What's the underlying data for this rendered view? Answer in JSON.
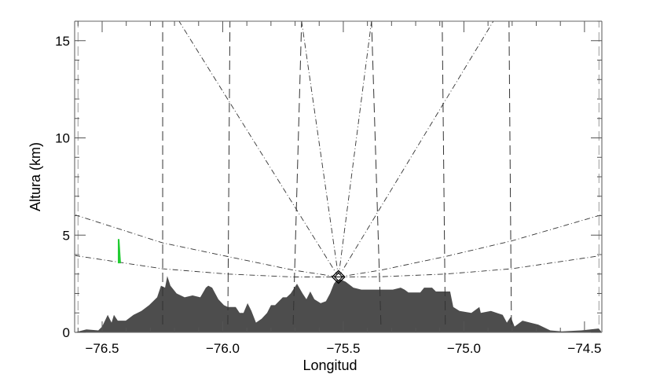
{
  "chart_data": {
    "type": "area",
    "title": "",
    "xlabel": "Longitud",
    "ylabel": "Altura (km)",
    "xlim": [
      -76.614,
      -74.428
    ],
    "ylim": [
      0,
      16
    ],
    "grid": false,
    "x_ticks": [
      -76.5,
      -76.0,
      -75.5,
      -75.0,
      -74.5
    ],
    "x_tick_labels": [
      "−76.5",
      "−76.0",
      "−75.5",
      "−75.0",
      "−74.5"
    ],
    "y_ticks": [
      0,
      5,
      10,
      15
    ],
    "y_tick_labels": [
      "0",
      "5",
      "10",
      "15"
    ],
    "terrain_color": "#4d4d4d",
    "terrain": {
      "lon": [
        -76.614,
        -76.565,
        -76.516,
        -76.5,
        -76.477,
        -76.461,
        -76.451,
        -76.435,
        -76.402,
        -76.37,
        -76.337,
        -76.305,
        -76.272,
        -76.256,
        -76.239,
        -76.23,
        -76.217,
        -76.191,
        -76.158,
        -76.125,
        -76.093,
        -76.07,
        -76.06,
        -76.044,
        -76.018,
        -75.995,
        -75.979,
        -75.946,
        -75.93,
        -75.914,
        -75.897,
        -75.881,
        -75.862,
        -75.839,
        -75.816,
        -75.8,
        -75.783,
        -75.767,
        -75.751,
        -75.735,
        -75.718,
        -75.692,
        -75.669,
        -75.653,
        -75.637,
        -75.62,
        -75.594,
        -75.572,
        -75.555,
        -75.539,
        -75.523,
        -75.507,
        -75.49,
        -75.458,
        -75.425,
        -75.36,
        -75.295,
        -75.262,
        -75.246,
        -75.23,
        -75.181,
        -75.165,
        -75.132,
        -75.116,
        -75.083,
        -75.067,
        -75.057,
        -75.044,
        -75.018,
        -74.969,
        -74.936,
        -74.93,
        -74.888,
        -74.839,
        -74.822,
        -74.806,
        -74.79,
        -74.757,
        -74.725,
        -74.692,
        -74.642,
        -74.594,
        -74.513,
        -74.441,
        -74.428
      ],
      "height_km": [
        0,
        0.15,
        0.1,
        0.3,
        0.9,
        0.5,
        0.9,
        0.6,
        0.6,
        0.9,
        1.1,
        1.4,
        1.8,
        2.4,
        2.3,
        2.9,
        2.4,
        2.0,
        1.8,
        1.9,
        1.8,
        2.3,
        2.4,
        2.3,
        1.7,
        1.4,
        1.3,
        1.3,
        1.0,
        1.0,
        1.5,
        1.1,
        0.5,
        0.7,
        1.0,
        1.4,
        1.4,
        1.6,
        1.8,
        1.8,
        2.0,
        2.5,
        2.0,
        1.7,
        2.1,
        1.7,
        1.5,
        1.6,
        2.0,
        2.5,
        2.75,
        2.7,
        2.6,
        2.3,
        2.2,
        2.2,
        2.2,
        2.3,
        2.2,
        2.05,
        2.05,
        2.3,
        2.3,
        2.1,
        2.1,
        2.1,
        2.1,
        1.3,
        1.1,
        1.0,
        1.3,
        1.0,
        1.1,
        0.9,
        0.5,
        0.8,
        0.3,
        0.6,
        0.5,
        0.4,
        0.1,
        0.05,
        0.1,
        0.2,
        0
      ]
    },
    "radar": {
      "lon": -75.52,
      "height_km": 2.85
    },
    "range_lines": [
      {
        "lon_bottom": -76.6,
        "lon_top": -76.6
      },
      {
        "lon_bottom": -76.249,
        "lon_top": -76.249
      },
      {
        "lon_bottom": -75.979,
        "lon_top": -75.97
      },
      {
        "lon_bottom": -75.708,
        "lon_top": -75.673
      },
      {
        "lon_bottom": -75.344,
        "lon_top": -75.383
      },
      {
        "lon_bottom": -75.077,
        "lon_top": -75.09
      },
      {
        "lon_bottom": -74.803,
        "lon_top": -74.813
      },
      {
        "lon_bottom": -74.44,
        "lon_top": -74.44
      }
    ],
    "beam_rays_top_lon": [
      -76.181,
      -75.673,
      -75.383,
      -74.878
    ],
    "beam_curves": [
      {
        "lon": [
          -76.614,
          -76.249,
          -75.979,
          -75.708,
          -75.52
        ],
        "height_km": [
          6.05,
          4.6,
          3.9,
          3.2,
          2.85
        ]
      },
      {
        "lon": [
          -76.614,
          -76.249,
          -75.979,
          -75.708,
          -75.52
        ],
        "height_km": [
          3.95,
          3.27,
          3.0,
          2.85,
          2.85
        ]
      },
      {
        "lon": [
          -75.52,
          -75.344,
          -75.077,
          -74.803,
          -74.428
        ],
        "height_km": [
          2.85,
          3.2,
          3.9,
          4.7,
          6.05
        ]
      },
      {
        "lon": [
          -75.52,
          -75.344,
          -75.077,
          -74.803,
          -74.428
        ],
        "height_km": [
          2.85,
          2.86,
          3.0,
          3.27,
          3.95
        ]
      }
    ],
    "echo": {
      "lon": -76.43,
      "height_bottom_km": 3.55,
      "height_top_km": 4.8,
      "color": "#22cc33"
    }
  }
}
